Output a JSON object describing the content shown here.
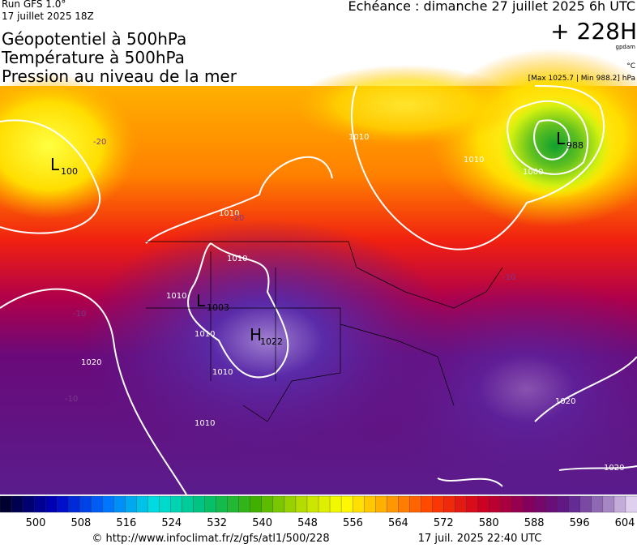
{
  "header": {
    "run": "Run GFS 1.0°",
    "run_date": "17 juillet 2025 18Z",
    "valid": "Echéance : dimanche 27 juillet 2025 6h UTC",
    "lines": [
      "Géopotentiel à 500hPa",
      "Température à 500hPa",
      "Pression au niveau de la mer"
    ],
    "lead": "+ 228H",
    "lead_unit": "gpdam",
    "temp_unit": "°C",
    "range": "[Max 1025.7 | Min 988.2] hPa"
  },
  "map": {
    "centers": [
      {
        "type": "L",
        "value": "1003"
      },
      {
        "type": "H",
        "value": "1022"
      },
      {
        "type": "L",
        "value": "988"
      },
      {
        "type": "L",
        "value": "100"
      }
    ],
    "isobar_labels": [
      "1010",
      "1010",
      "1010",
      "1010",
      "1010",
      "1010",
      "1010",
      "1000",
      "1020",
      "1020",
      "1020",
      "1010"
    ],
    "temp_labels": [
      "-20",
      "-20",
      "-10",
      "-10",
      "-10"
    ]
  },
  "colorbar": {
    "ticks": [
      500,
      508,
      516,
      524,
      532,
      540,
      548,
      556,
      564,
      572,
      580,
      588,
      596,
      604
    ]
  },
  "footer": {
    "source": "© http://www.infoclimat.fr/z/gfs/atl1/500/228",
    "generated": "17 juil. 2025 22:40 UTC"
  }
}
